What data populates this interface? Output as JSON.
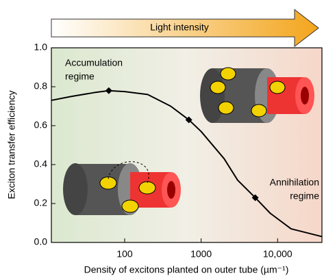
{
  "chart_data": {
    "type": "line",
    "banner": "Light intensity",
    "annotations": [
      [
        "Accumulation",
        "regime"
      ],
      [
        "Annihilation",
        "regime"
      ]
    ],
    "xlabel": "Density of excitons planted on outer tube (µm⁻¹)",
    "ylabel": "Exciton transfer efficiency",
    "log_x": true,
    "xlim": [
      11,
      38000
    ],
    "xticks": [
      100,
      1000,
      {
        "value": 10000,
        "label": "10,000"
      }
    ],
    "ylim": [
      0,
      1
    ],
    "yticks": [
      {
        "value": 0,
        "label": "0.0"
      },
      0.2,
      0.4,
      0.6,
      0.8,
      {
        "value": 1,
        "label": "1.0"
      }
    ],
    "series": [
      {
        "color": "#000000",
        "markers": false,
        "x": [
          11,
          20,
          40,
          62,
          100,
          200,
          400,
          690,
          1000,
          2000,
          3000,
          5100,
          8000,
          15000,
          38000
        ],
        "values": [
          0.73,
          0.75,
          0.77,
          0.78,
          0.775,
          0.76,
          0.7,
          0.63,
          0.57,
          0.43,
          0.32,
          0.23,
          0.15,
          0.07,
          0.03
        ]
      },
      {
        "color": "#000000",
        "markers": true,
        "x": [
          62,
          690,
          5100
        ],
        "values": [
          0.78,
          0.63,
          0.23
        ]
      }
    ]
  }
}
